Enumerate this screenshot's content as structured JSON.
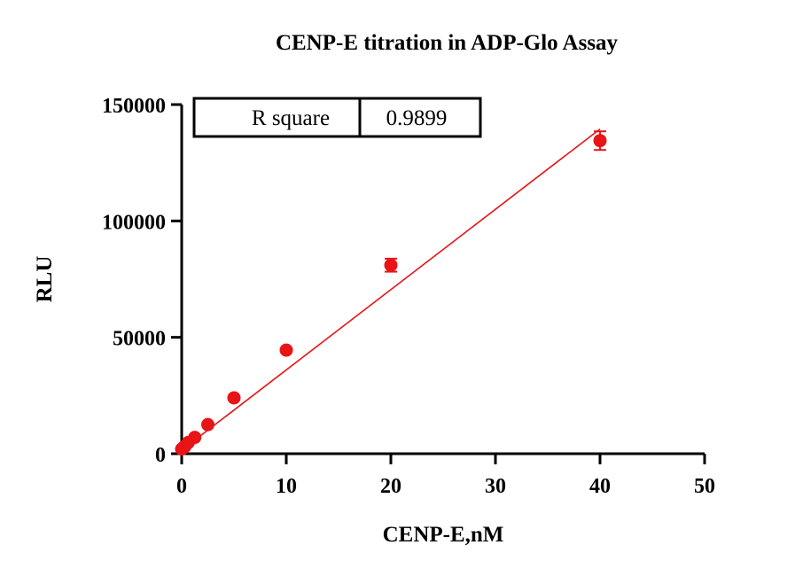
{
  "chart_data": {
    "type": "scatter",
    "title": "CENP-E titration in ADP-Glo Assay",
    "xlabel": "CENP-E,nM",
    "ylabel": "RLU",
    "xlim": [
      0,
      50
    ],
    "ylim": [
      0,
      150000
    ],
    "xticks": [
      0,
      10,
      20,
      30,
      40,
      50
    ],
    "yticks": [
      0,
      50000,
      100000,
      150000
    ],
    "xtick_labels": [
      "0",
      "10",
      "20",
      "30",
      "40",
      "50"
    ],
    "ytick_labels": [
      "0",
      "50000",
      "100000",
      "150000"
    ],
    "grid": false,
    "series": [
      {
        "points": [
          {
            "x": 0,
            "y": 2000,
            "err": 0
          },
          {
            "x": 0.156,
            "y": 2600,
            "err": 0
          },
          {
            "x": 0.3125,
            "y": 3200,
            "err": 0
          },
          {
            "x": 0.625,
            "y": 4800,
            "err": 0
          },
          {
            "x": 1.25,
            "y": 7000,
            "err": 0
          },
          {
            "x": 2.5,
            "y": 12500,
            "err": 0
          },
          {
            "x": 5,
            "y": 24000,
            "err": 0
          },
          {
            "x": 10,
            "y": 44500,
            "err": 0
          },
          {
            "x": 20,
            "y": 81000,
            "err": 2800
          },
          {
            "x": 40,
            "y": 134500,
            "err": 4000
          }
        ],
        "color": "#e81416"
      }
    ],
    "fit_line": {
      "type": "linear",
      "x_range": [
        0,
        40
      ],
      "y_range": [
        1500,
        139500
      ],
      "color": "#e81416"
    },
    "stats_table": {
      "label": "R square",
      "value": "0.9899"
    }
  }
}
